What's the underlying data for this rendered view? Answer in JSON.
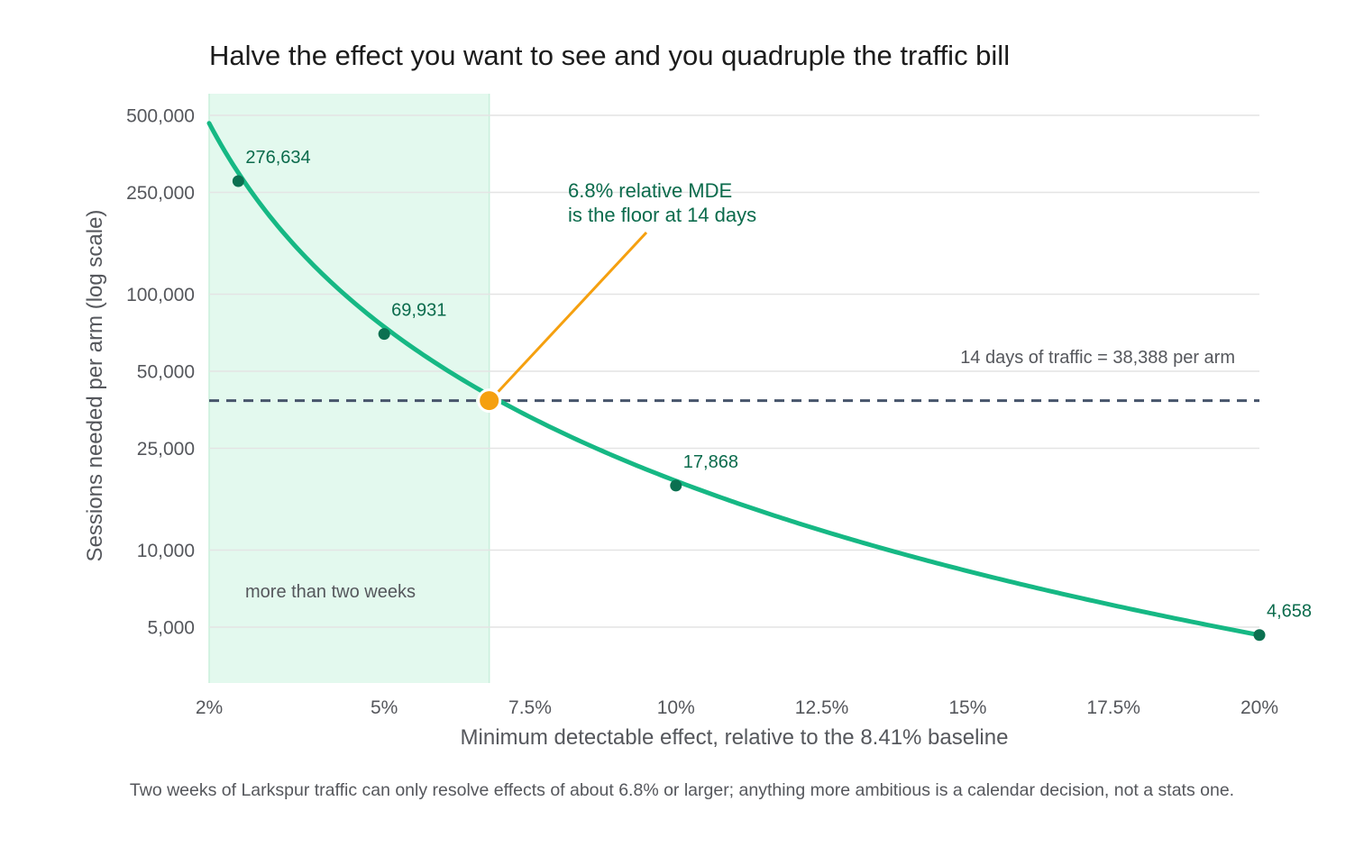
{
  "chart_data": {
    "type": "line",
    "title": "Halve the effect you want to see and you quadruple the traffic bill",
    "caption": "Two weeks of Larkspur traffic can only resolve effects of about 6.8% or larger; anything more ambitious is a calendar decision, not a stats one.",
    "xlabel": "Minimum detectable effect, relative to the 8.41% baseline",
    "ylabel": "Sessions needed per arm (log scale)",
    "yscale": "log",
    "xlim": [
      2,
      20
    ],
    "ylim": [
      3200,
      560000
    ],
    "xticks": [
      {
        "value": 2,
        "label": "2%"
      },
      {
        "value": 5,
        "label": "5%"
      },
      {
        "value": 7.5,
        "label": "7.5%"
      },
      {
        "value": 10,
        "label": "10%"
      },
      {
        "value": 12.5,
        "label": "12.5%"
      },
      {
        "value": 15,
        "label": "15%"
      },
      {
        "value": 17.5,
        "label": "17.5%"
      },
      {
        "value": 20,
        "label": "20%"
      }
    ],
    "yticks": [
      {
        "value": 5000,
        "label": "5,000"
      },
      {
        "value": 10000,
        "label": "10,000"
      },
      {
        "value": 25000,
        "label": "25,000"
      },
      {
        "value": 50000,
        "label": "50,000"
      },
      {
        "value": 100000,
        "label": "100,000"
      },
      {
        "value": 250000,
        "label": "250,000"
      },
      {
        "value": 500000,
        "label": "500,000"
      }
    ],
    "grid": "horizontal",
    "series": [
      {
        "color": "#16b884",
        "curve_constant": 1863000,
        "curve_exponent": 2,
        "x_range": [
          2,
          20
        ]
      }
    ],
    "labeled_points": [
      {
        "x": 2.5,
        "y": 276634,
        "label": "276,634"
      },
      {
        "x": 5,
        "y": 69931,
        "label": "69,931"
      },
      {
        "x": 10,
        "y": 17868,
        "label": "17,868"
      },
      {
        "x": 20,
        "y": 4658,
        "label": "4,658"
      }
    ],
    "reference_line": {
      "y": 38388,
      "label": "14 days of traffic = 38,388 per arm",
      "style": "dashed",
      "color": "#47556b"
    },
    "shaded_region": {
      "x_from": 2,
      "x_to": 6.8,
      "label": "more than two weeks",
      "color": "#e3f9ee"
    },
    "highlight_point": {
      "x": 6.8,
      "y": 38388,
      "color": "#f5a00f",
      "annotation": [
        "6.8% relative MDE",
        "is the floor at 14 days"
      ]
    },
    "colors": {
      "point": "#0b7050",
      "label": "#0b6b4c",
      "annotation": "#0b6b4c",
      "grid": "#e4e4e4",
      "tick_text": "#55575c"
    }
  }
}
